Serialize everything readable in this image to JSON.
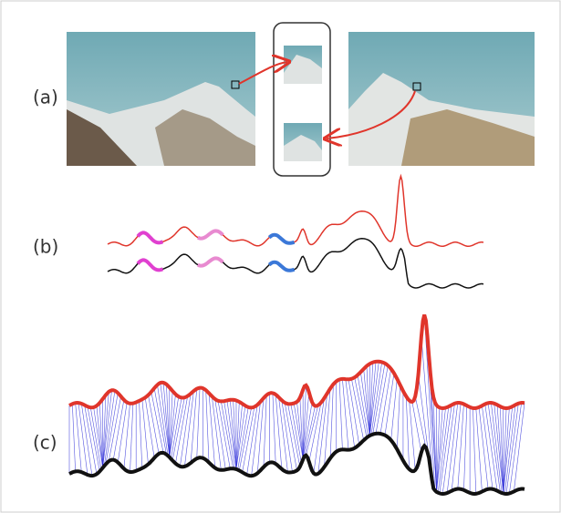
{
  "panels": {
    "a": {
      "label": "(a)"
    },
    "b": {
      "label": "(b)"
    },
    "c": {
      "label": "(c)"
    }
  }
}
